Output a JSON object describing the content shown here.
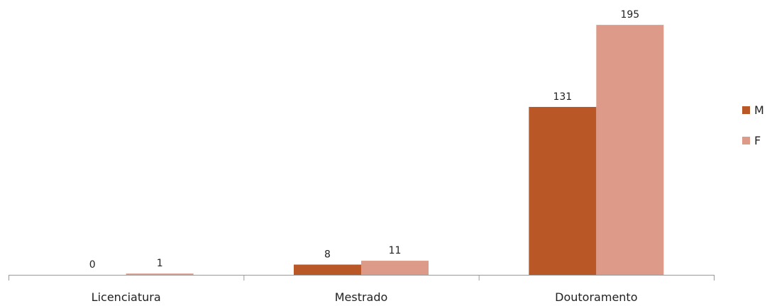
{
  "chart_data": {
    "type": "bar",
    "categories": [
      "Licenciatura",
      "Mestrado",
      "Doutoramento"
    ],
    "series": [
      {
        "name": "M",
        "values": [
          0,
          8,
          131
        ],
        "color": "#b95727"
      },
      {
        "name": "F",
        "values": [
          1,
          11,
          195
        ],
        "color": "#de9a88"
      }
    ],
    "ylim": [
      0,
      210
    ],
    "grid": false,
    "data_labels": true,
    "legend_position": "right"
  }
}
